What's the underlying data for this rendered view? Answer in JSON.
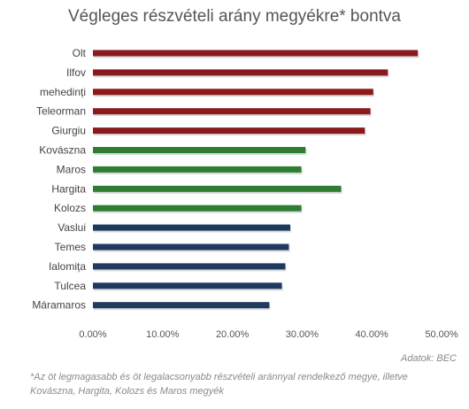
{
  "chart_data": {
    "type": "bar",
    "orientation": "horizontal",
    "title": "Végleges részvételi arány megyékre* bontva",
    "categories": [
      "Olt",
      "Ilfov",
      "mehedinți",
      "Teleorman",
      "Giurgiu",
      "Kovászna",
      "Maros",
      "Hargita",
      "Kolozs",
      "Vaslui",
      "Temes",
      "Ialomița",
      "Tulcea",
      "Máramaros"
    ],
    "values": [
      46.6,
      42.3,
      40.2,
      39.8,
      39.0,
      30.5,
      29.9,
      35.6,
      29.9,
      28.3,
      28.1,
      27.6,
      27.1,
      25.3
    ],
    "bar_colors": [
      "#8b1a1e",
      "#8b1a1e",
      "#8b1a1e",
      "#8b1a1e",
      "#8b1a1e",
      "#2e7d32",
      "#2e7d32",
      "#2e7d32",
      "#2e7d32",
      "#1f3a5f",
      "#1f3a5f",
      "#1f3a5f",
      "#1f3a5f",
      "#1f3a5f"
    ],
    "xlim": [
      0,
      50
    ],
    "x_ticks": [
      "0.00%",
      "10.00%",
      "20.00%",
      "30.00%",
      "40.00%",
      "50.00%"
    ],
    "grid": false,
    "legend": "none",
    "xlabel": "",
    "ylabel": ""
  },
  "source": "Adatok: BEC",
  "footnote": "*Az öt legmagasabb és öt legalacsonyabb részvételi aránnyal rendelkező megye, illetve Kovászna, Hargita, Kolozs és Maros megyék"
}
